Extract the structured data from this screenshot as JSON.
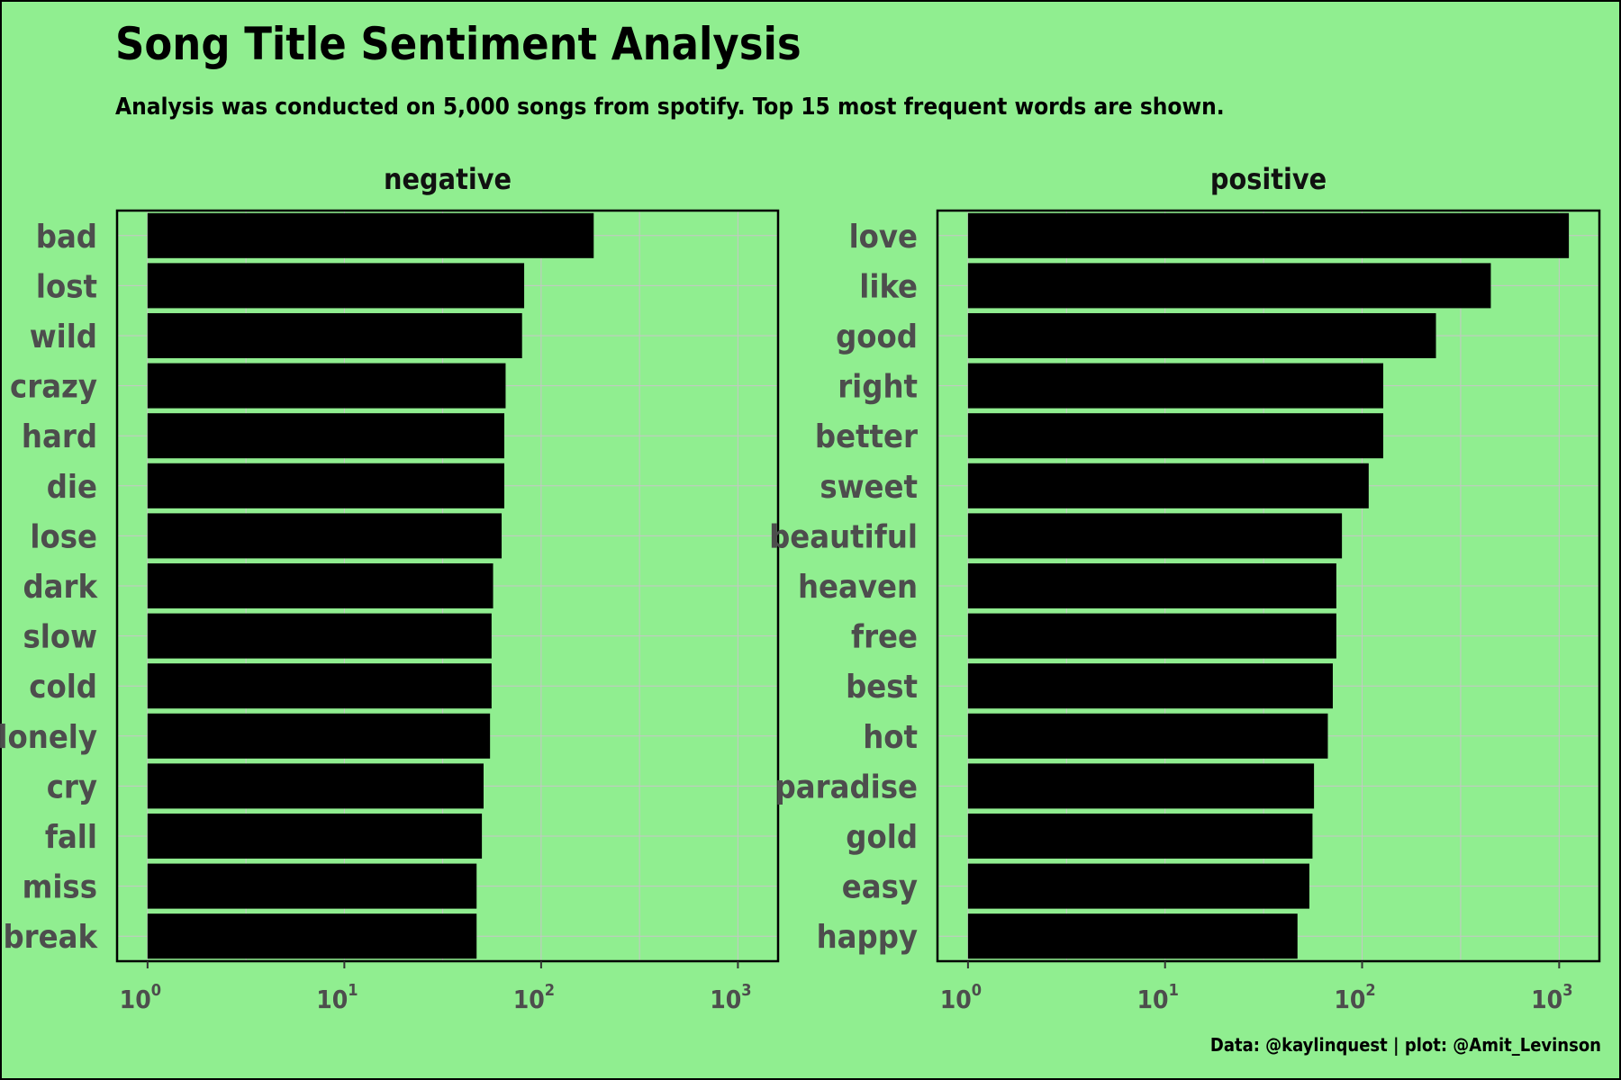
{
  "colors": {
    "background": "#90ee90",
    "bar": "#000000",
    "grid": "#c6c6c6",
    "label": "#4d4d4d"
  },
  "chart_data": {
    "type": "bar",
    "orientation": "horizontal",
    "title": "Song Title Sentiment Analysis",
    "subtitle": "Analysis was conducted on 5,000 songs from spotify. Top 15 most frequent words are shown.",
    "caption": "Data: @kaylinquest | plot: @Amit_Levinson",
    "x_scale": "log10",
    "x_ticks": [
      {
        "base": "10",
        "exp": "0"
      },
      {
        "base": "10",
        "exp": "1"
      },
      {
        "base": "10",
        "exp": "2"
      },
      {
        "base": "10",
        "exp": "3"
      }
    ],
    "xlim": [
      0.7,
      1600
    ],
    "grid": true,
    "facets": [
      {
        "name": "negative",
        "categories": [
          "bad",
          "lost",
          "wild",
          "crazy",
          "hard",
          "die",
          "lose",
          "dark",
          "slow",
          "cold",
          "lonely",
          "cry",
          "fall",
          "miss",
          "break"
        ],
        "values": [
          185,
          82,
          80,
          66,
          65,
          65,
          63,
          57,
          56,
          56,
          55,
          51,
          50,
          47,
          47
        ]
      },
      {
        "name": "positive",
        "categories": [
          "love",
          "like",
          "good",
          "right",
          "better",
          "sweet",
          "beautiful",
          "heaven",
          "free",
          "best",
          "hot",
          "paradise",
          "gold",
          "easy",
          "happy"
        ],
        "values": [
          1120,
          450,
          237,
          128,
          128,
          108,
          79,
          74,
          74,
          71,
          67,
          57,
          56,
          54,
          47
        ]
      }
    ]
  }
}
